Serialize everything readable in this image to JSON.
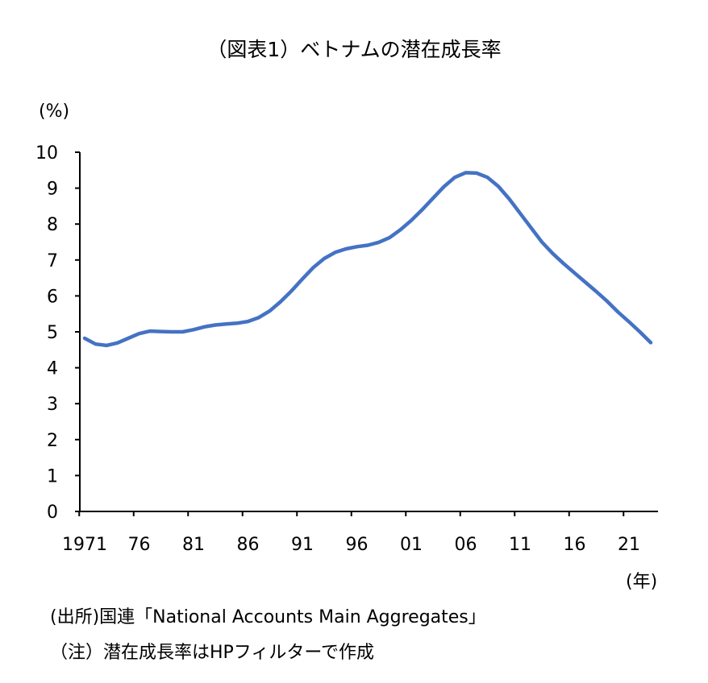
{
  "chart_data": {
    "type": "line",
    "title": "（図表1）ベトナムの潜在成長率",
    "ylabel": "(%)",
    "xlabel": "(年)",
    "ylim": [
      0,
      10
    ],
    "yticks": [
      "0",
      "1",
      "2",
      "3",
      "4",
      "5",
      "6",
      "7",
      "8",
      "9",
      "10"
    ],
    "xtick_labels": [
      "1971",
      "76",
      "81",
      "86",
      "91",
      "96",
      "01",
      "06",
      "11",
      "16",
      "21"
    ],
    "x_start": 1971,
    "x_end": 2023,
    "grid": false,
    "series": [
      {
        "name": "潜在成長率",
        "color": "#4472C4",
        "values": [
          4.82,
          4.66,
          4.62,
          4.69,
          4.82,
          4.95,
          5.02,
          5.01,
          5.0,
          5.0,
          5.06,
          5.14,
          5.19,
          5.22,
          5.24,
          5.29,
          5.4,
          5.58,
          5.84,
          6.14,
          6.47,
          6.79,
          7.04,
          7.21,
          7.31,
          7.37,
          7.41,
          7.49,
          7.62,
          7.84,
          8.1,
          8.4,
          8.72,
          9.04,
          9.3,
          9.43,
          9.42,
          9.3,
          9.05,
          8.7,
          8.3,
          7.9,
          7.5,
          7.18,
          6.9,
          6.64,
          6.38,
          6.12,
          5.85,
          5.55,
          5.28,
          5.0,
          4.7
        ]
      }
    ]
  },
  "notes": [
    "(出所)国連「National Accounts Main Aggregates」",
    "（注）潜在成長率はHPフィルターで作成"
  ]
}
